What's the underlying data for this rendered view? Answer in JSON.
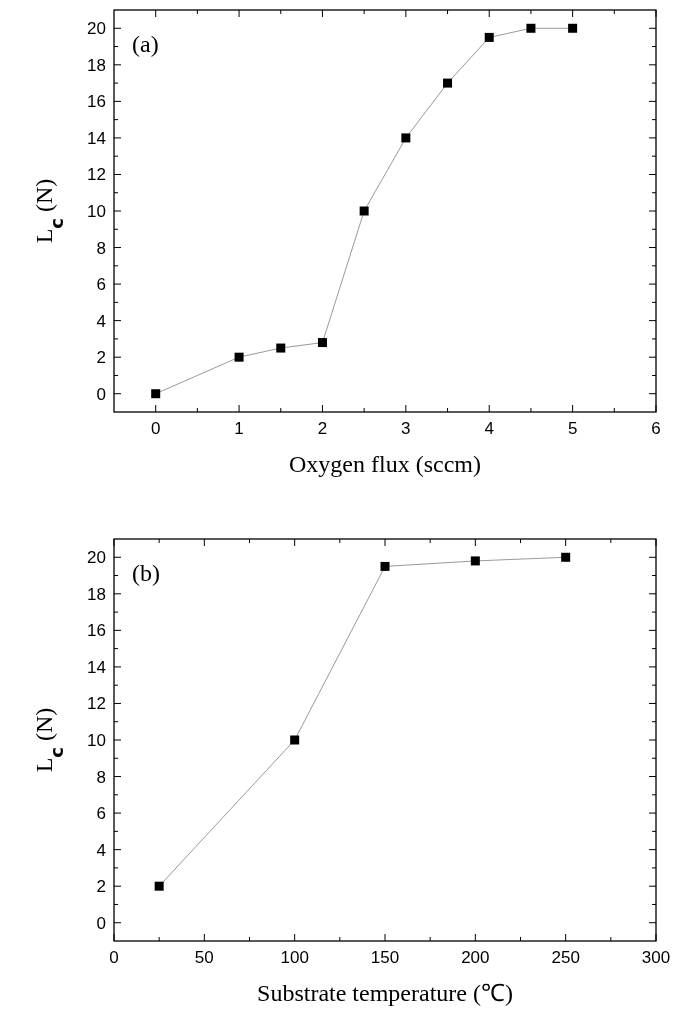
{
  "chart_data": [
    {
      "type": "line",
      "annotations": [
        "(a)"
      ],
      "xlabel": "Oxygen flux (sccm)",
      "ylabel": "L$_{c}$ (N)",
      "x": [
        0,
        1,
        1.5,
        2,
        2.5,
        3,
        3.5,
        4,
        4.5,
        5
      ],
      "series": [
        {
          "color": "#000000",
          "values": [
            0,
            2,
            2.5,
            2.8,
            10,
            14,
            17,
            19.5,
            20,
            20
          ]
        }
      ],
      "marker": "square",
      "xlim": [
        -0.5,
        6
      ],
      "ylim": [
        -1,
        21
      ],
      "xticks": [
        0,
        {
          "value": 0.5,
          "label": null
        },
        1,
        {
          "value": 1.5,
          "label": null
        },
        2,
        {
          "value": 2.5,
          "label": null
        },
        3,
        {
          "value": 3.5,
          "label": null
        },
        4,
        {
          "value": 4.5,
          "label": null
        },
        5,
        {
          "value": 5.5,
          "label": null
        },
        6
      ],
      "yticks": [
        0,
        {
          "value": 1,
          "label": null
        },
        2,
        {
          "value": 3,
          "label": null
        },
        4,
        {
          "value": 5,
          "label": null
        },
        6,
        {
          "value": 7,
          "label": null
        },
        8,
        {
          "value": 9,
          "label": null
        },
        10,
        {
          "value": 11,
          "label": null
        },
        12,
        {
          "value": 13,
          "label": null
        },
        14,
        {
          "value": 15,
          "label": null
        },
        16,
        {
          "value": 17,
          "label": null
        },
        18,
        {
          "value": 19,
          "label": null
        },
        20
      ]
    },
    {
      "type": "line",
      "annotations": [
        "(b)"
      ],
      "xlabel": "Substrate temperature (℃)",
      "ylabel": "L$_{c}$ (N)",
      "x": [
        25,
        100,
        150,
        200,
        250
      ],
      "series": [
        {
          "color": "#000000",
          "values": [
            2,
            10,
            19.5,
            19.8,
            20
          ]
        }
      ],
      "marker": "square",
      "xlim": [
        0,
        300
      ],
      "ylim": [
        -1,
        21
      ],
      "xticks": [
        0,
        {
          "value": 25,
          "label": null
        },
        50,
        {
          "value": 75,
          "label": null
        },
        100,
        {
          "value": 125,
          "label": null
        },
        150,
        {
          "value": 175,
          "label": null
        },
        200,
        {
          "value": 225,
          "label": null
        },
        250,
        {
          "value": 275,
          "label": null
        },
        300
      ],
      "yticks": [
        0,
        {
          "value": 1,
          "label": null
        },
        2,
        {
          "value": 3,
          "label": null
        },
        4,
        {
          "value": 5,
          "label": null
        },
        6,
        {
          "value": 7,
          "label": null
        },
        8,
        {
          "value": 9,
          "label": null
        },
        10,
        {
          "value": 11,
          "label": null
        },
        12,
        {
          "value": 13,
          "label": null
        },
        14,
        {
          "value": 15,
          "label": null
        },
        16,
        {
          "value": 17,
          "label": null
        },
        18,
        {
          "value": 19,
          "label": null
        },
        20
      ]
    }
  ]
}
